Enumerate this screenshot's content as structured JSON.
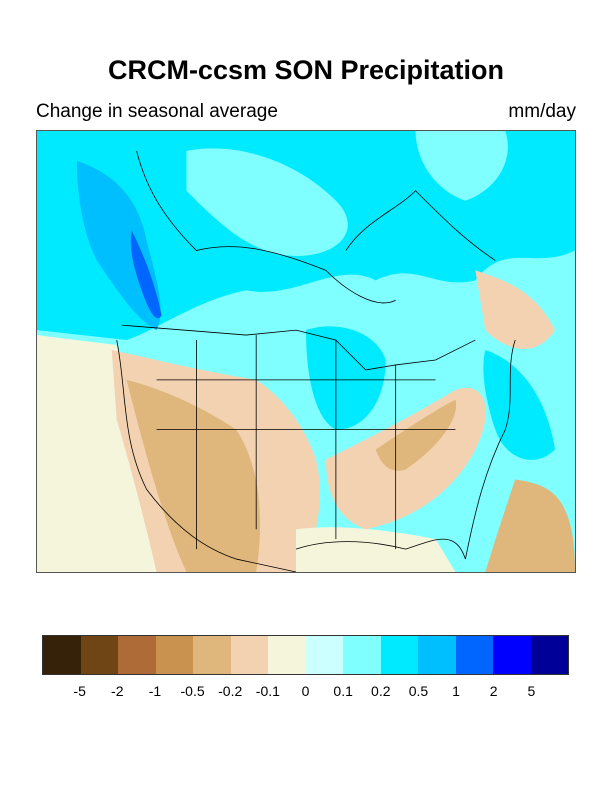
{
  "title": "CRCM-ccsm SON Precipitation",
  "subtitle_left": "Change in seasonal average",
  "subtitle_right": "mm/day",
  "colorbar": {
    "colors": [
      "#362208",
      "#704515",
      "#ae6b38",
      "#c9924f",
      "#dfb77c",
      "#f3d2b2",
      "#f5f5dc",
      "#ccffff",
      "#7fffff",
      "#00eaff",
      "#00bfff",
      "#0066ff",
      "#0000ff",
      "#000099"
    ],
    "labels": [
      "-5",
      "-2",
      "-1",
      "-0.5",
      "-0.2",
      "-0.1",
      "0",
      "0.1",
      "0.2",
      "0.5",
      "1",
      "2",
      "5"
    ]
  }
}
